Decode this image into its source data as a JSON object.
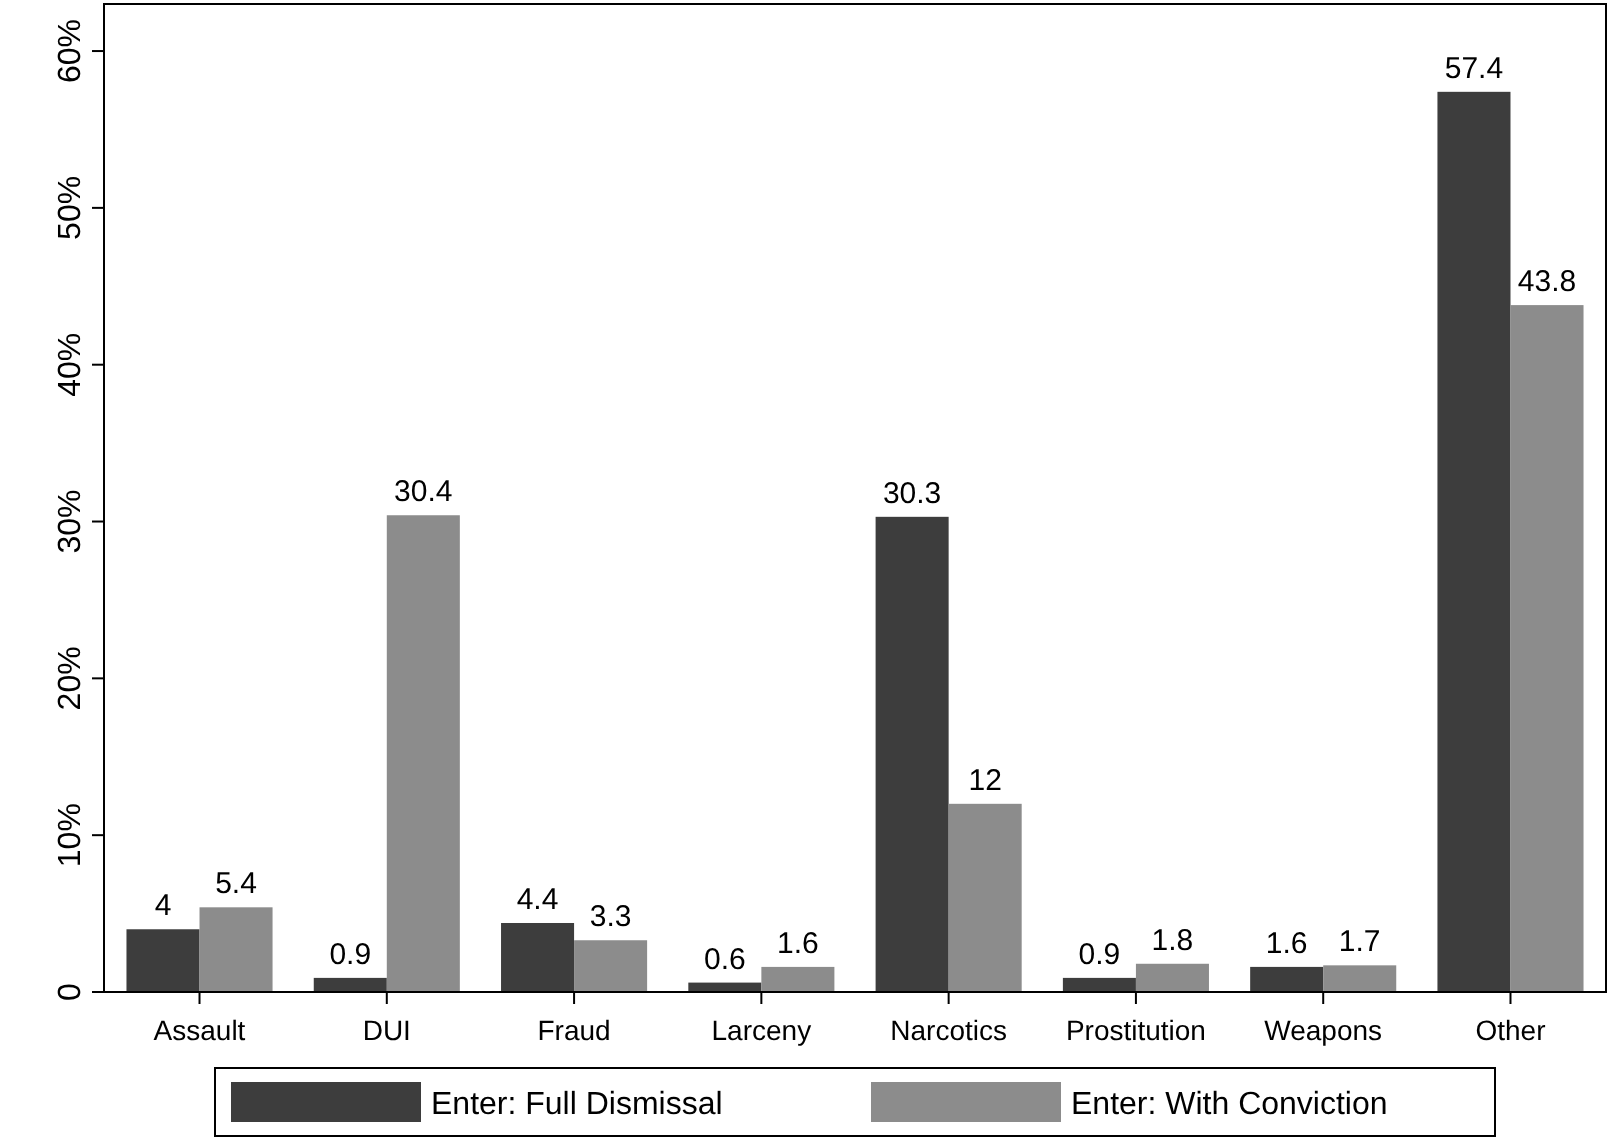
{
  "chart_data": {
    "type": "bar",
    "categories": [
      "Assault",
      "DUI",
      "Fraud",
      "Larceny",
      "Narcotics",
      "Prostitution",
      "Weapons",
      "Other"
    ],
    "series": [
      {
        "name": "Enter: Full Dismissal",
        "color": "#3d3d3d",
        "values": [
          4,
          0.9,
          4.4,
          0.6,
          30.3,
          0.9,
          1.6,
          57.4
        ]
      },
      {
        "name": "Enter: With Conviction",
        "color": "#8c8c8c",
        "values": [
          5.4,
          30.4,
          3.3,
          1.6,
          12,
          1.8,
          1.7,
          43.8
        ]
      }
    ],
    "ylim": [
      0,
      63
    ],
    "yticks": [
      {
        "value": 0,
        "label": "0"
      },
      {
        "value": 10,
        "label": "10%"
      },
      {
        "value": 20,
        "label": "20%"
      },
      {
        "value": 30,
        "label": "30%"
      },
      {
        "value": 40,
        "label": "40%"
      },
      {
        "value": 50,
        "label": "50%"
      },
      {
        "value": 60,
        "label": "60%"
      }
    ],
    "data_labels": true,
    "grid": false,
    "legend": "bottom"
  }
}
